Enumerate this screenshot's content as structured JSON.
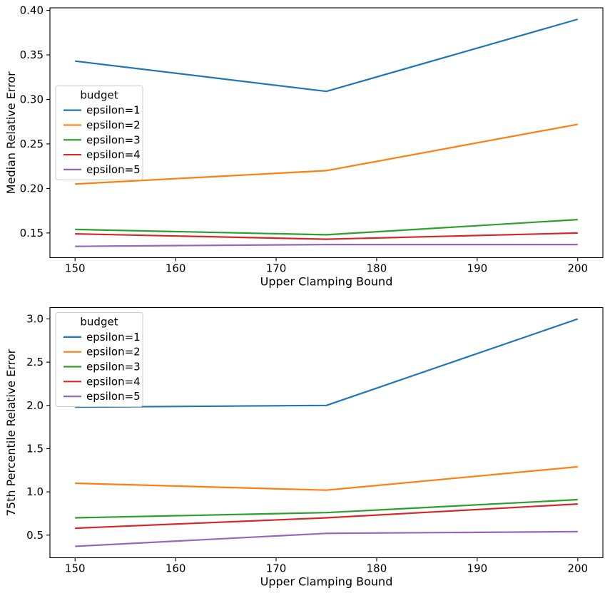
{
  "figure": {
    "background": "#ffffff"
  },
  "chart_data": [
    {
      "type": "line",
      "title": "",
      "xlabel": "Upper Clamping Bound",
      "ylabel": "Median Relative Error",
      "x": [
        150,
        175,
        200
      ],
      "series": [
        {
          "name": "epsilon=1",
          "color": "#1f77b4",
          "values": [
            0.343,
            0.309,
            0.39
          ]
        },
        {
          "name": "epsilon=2",
          "color": "#ff7f0e",
          "values": [
            0.205,
            0.22,
            0.272
          ]
        },
        {
          "name": "epsilon=3",
          "color": "#2ca02c",
          "values": [
            0.154,
            0.148,
            0.165
          ]
        },
        {
          "name": "epsilon=4",
          "color": "#d62728",
          "values": [
            0.149,
            0.143,
            0.15
          ]
        },
        {
          "name": "epsilon=5",
          "color": "#9467bd",
          "values": [
            0.135,
            0.137,
            0.137
          ]
        }
      ],
      "xlim": [
        147.5,
        202.5
      ],
      "ylim": [
        0.1223,
        0.4028
      ],
      "xticks": {
        "values": [
          150,
          160,
          170,
          180,
          190,
          200
        ],
        "labels": [
          "150",
          "160",
          "170",
          "180",
          "190",
          "200"
        ]
      },
      "yticks": {
        "values": [
          0.15,
          0.2,
          0.25,
          0.3,
          0.35,
          0.4
        ],
        "labels": [
          "0.15",
          "0.20",
          "0.25",
          "0.30",
          "0.35",
          "0.40"
        ]
      },
      "grid": false,
      "legend": {
        "title": "budget",
        "loc": "center left",
        "entries": [
          "epsilon=1",
          "epsilon=2",
          "epsilon=3",
          "epsilon=4",
          "epsilon=5"
        ]
      }
    },
    {
      "type": "line",
      "title": "",
      "xlabel": "Upper Clamping Bound",
      "ylabel": "75th Percentile Relative Error",
      "x": [
        150,
        175,
        200
      ],
      "series": [
        {
          "name": "epsilon=1",
          "color": "#1f77b4",
          "values": [
            1.98,
            2.0,
            3.0
          ]
        },
        {
          "name": "epsilon=2",
          "color": "#ff7f0e",
          "values": [
            1.1,
            1.02,
            1.29
          ]
        },
        {
          "name": "epsilon=3",
          "color": "#2ca02c",
          "values": [
            0.7,
            0.76,
            0.91
          ]
        },
        {
          "name": "epsilon=4",
          "color": "#d62728",
          "values": [
            0.58,
            0.7,
            0.86
          ]
        },
        {
          "name": "epsilon=5",
          "color": "#9467bd",
          "values": [
            0.37,
            0.52,
            0.54
          ]
        }
      ],
      "xlim": [
        147.5,
        202.5
      ],
      "ylim": [
        0.2385,
        3.1315
      ],
      "xticks": {
        "values": [
          150,
          160,
          170,
          180,
          190,
          200
        ],
        "labels": [
          "150",
          "160",
          "170",
          "180",
          "190",
          "200"
        ]
      },
      "yticks": {
        "values": [
          0.5,
          1.0,
          1.5,
          2.0,
          2.5,
          3.0
        ],
        "labels": [
          "0.5",
          "1.0",
          "1.5",
          "2.0",
          "2.5",
          "3.0"
        ]
      },
      "grid": false,
      "legend": {
        "title": "budget",
        "loc": "upper left",
        "entries": [
          "epsilon=1",
          "epsilon=2",
          "epsilon=3",
          "epsilon=4",
          "epsilon=5"
        ]
      }
    }
  ]
}
